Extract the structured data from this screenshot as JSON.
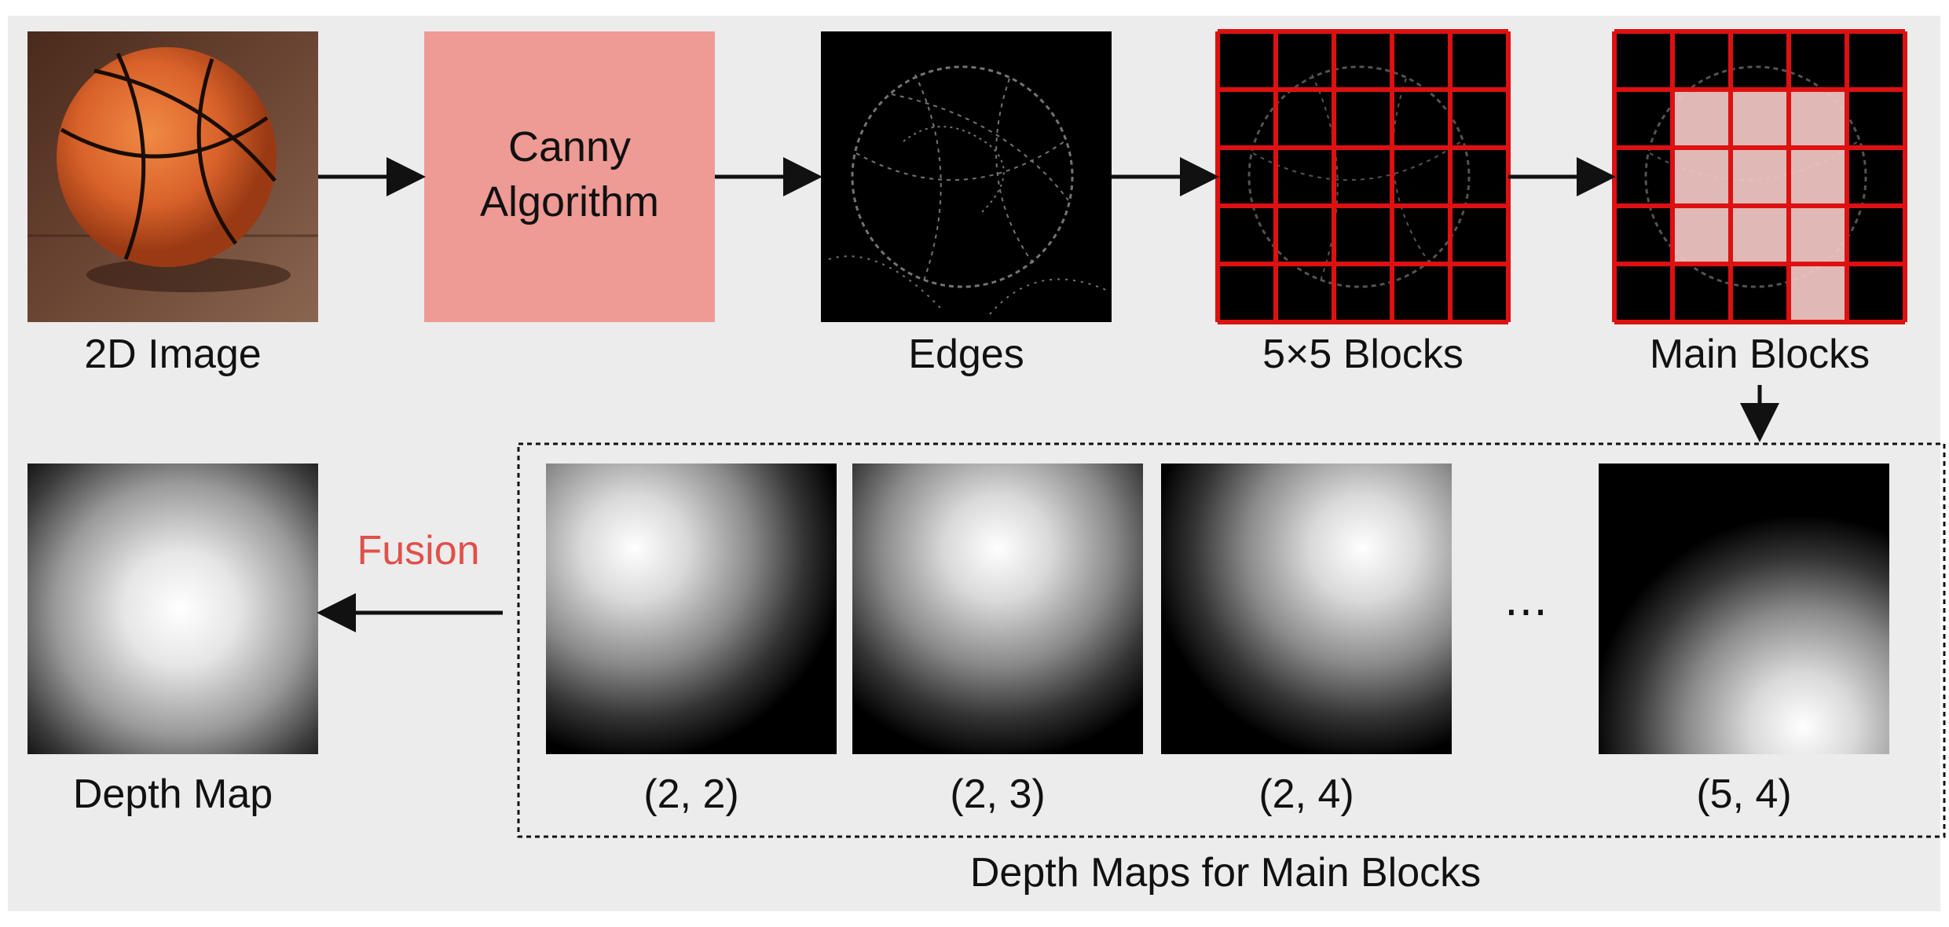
{
  "top_row": {
    "input_label": "2D Image",
    "canny_text_line1": "Canny",
    "canny_text_line2": "Algorithm",
    "edges_label": "Edges",
    "blocks_label": "5×5 Blocks",
    "main_blocks_label": "Main Blocks"
  },
  "bottom_row": {
    "fusion_label": "Fusion",
    "depth_map_label": "Depth Map",
    "group_label": "Depth Maps for Main Blocks",
    "ellipsis": "⋯",
    "maps": [
      {
        "label": "(2, 2)"
      },
      {
        "label": "(2, 3)"
      },
      {
        "label": "(2, 4)"
      },
      {
        "label": "(5, 4)"
      }
    ]
  },
  "grid": {
    "rows": 5,
    "cols": 5
  },
  "main_blocks_selected": [
    [
      2,
      2
    ],
    [
      2,
      3
    ],
    [
      2,
      4
    ],
    [
      3,
      2
    ],
    [
      3,
      3
    ],
    [
      3,
      4
    ],
    [
      4,
      2
    ],
    [
      4,
      3
    ],
    [
      4,
      4
    ],
    [
      5,
      4
    ]
  ],
  "colors": {
    "background": "#ececec",
    "canny_box": "#ee9a95",
    "grid_line": "#dd1111",
    "highlight": "#f3c9c6",
    "fusion_text": "#e0504a",
    "arrow": "#111111"
  }
}
